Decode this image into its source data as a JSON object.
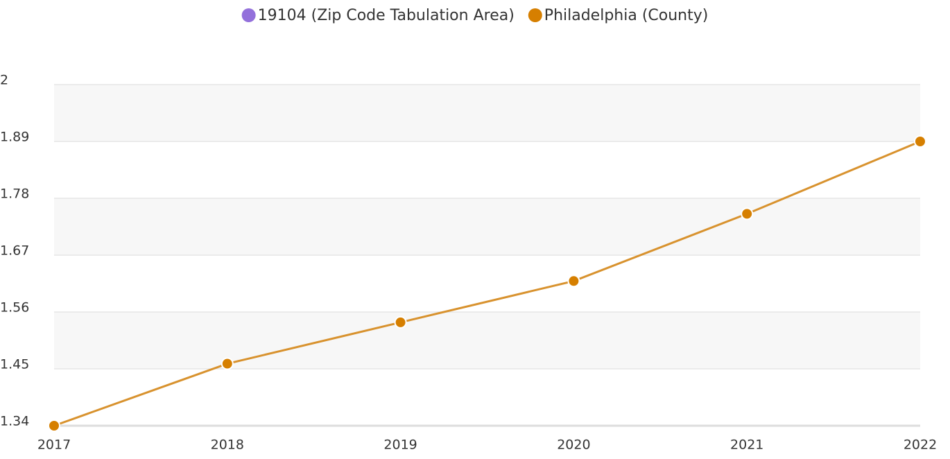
{
  "chart_data": {
    "type": "line",
    "categories": [
      "2017",
      "2018",
      "2019",
      "2020",
      "2021",
      "2022"
    ],
    "series": [
      {
        "name": "19104 (Zip Code Tabulation Area)",
        "color": "#9370db",
        "values": [
          null,
          null,
          null,
          null,
          null,
          null
        ]
      },
      {
        "name": "Philadelphia (County)",
        "color": "#d67f00",
        "line_color": "#d8922e",
        "values": [
          1.34,
          1.46,
          1.54,
          1.62,
          1.75,
          1.89
        ]
      }
    ],
    "ylim": [
      1.34,
      2
    ],
    "yticks": [
      1.34,
      1.45,
      1.56,
      1.67,
      1.78,
      1.89,
      2
    ],
    "grid": true,
    "legend": "top"
  }
}
